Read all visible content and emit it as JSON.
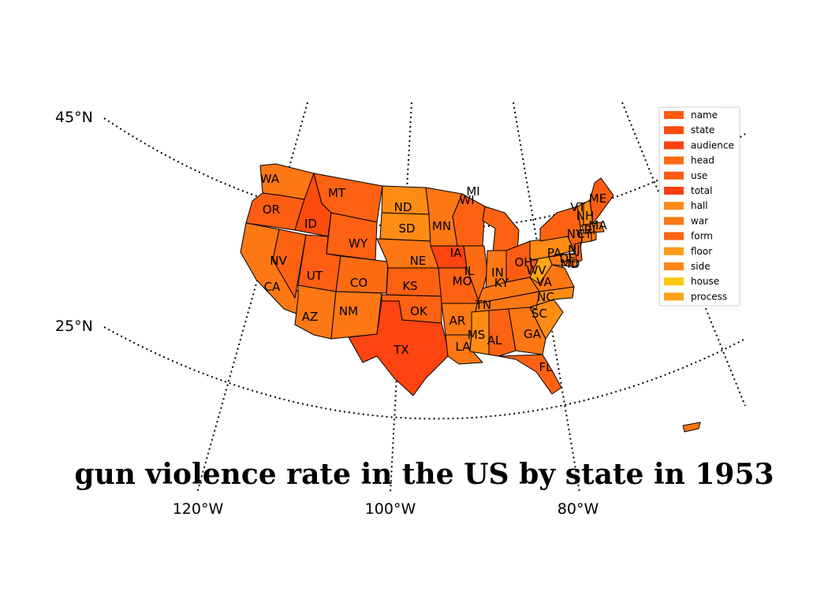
{
  "title": "gun violence rate in the US by state in 1953",
  "graticule_labels": {
    "lat": [
      "45°N",
      "25°N"
    ],
    "lon": [
      "120°W",
      "100°W",
      "80°W"
    ]
  },
  "legend": [
    {
      "label": "name",
      "color": "#fe5a10"
    },
    {
      "label": "state",
      "color": "#fd4b0e"
    },
    {
      "label": "audience",
      "color": "#fe4410"
    },
    {
      "label": "head",
      "color": "#fd6c12"
    },
    {
      "label": "use",
      "color": "#fd5d12"
    },
    {
      "label": "total",
      "color": "#fe3f10"
    },
    {
      "label": "hall",
      "color": "#fe8c14"
    },
    {
      "label": "war",
      "color": "#fd7714"
    },
    {
      "label": "form",
      "color": "#fd6212"
    },
    {
      "label": "floor",
      "color": "#fd9c16"
    },
    {
      "label": "side",
      "color": "#fe8716"
    },
    {
      "label": "house",
      "color": "#fdc80c"
    },
    {
      "label": "process",
      "color": "#fea418"
    }
  ],
  "states": [
    {
      "abbr": "WA",
      "color": "#fd7714"
    },
    {
      "abbr": "OR",
      "color": "#fd5d12"
    },
    {
      "abbr": "CA",
      "color": "#fd7714"
    },
    {
      "abbr": "ID",
      "color": "#fd4b0e"
    },
    {
      "abbr": "NV",
      "color": "#fd6212"
    },
    {
      "abbr": "MT",
      "color": "#fd6212"
    },
    {
      "abbr": "WY",
      "color": "#fd6212"
    },
    {
      "abbr": "UT",
      "color": "#fd5d12"
    },
    {
      "abbr": "AZ",
      "color": "#fd7714"
    },
    {
      "abbr": "CO",
      "color": "#fd6c12"
    },
    {
      "abbr": "NM",
      "color": "#fd7714"
    },
    {
      "abbr": "ND",
      "color": "#fe8c14"
    },
    {
      "abbr": "SD",
      "color": "#fe8c14"
    },
    {
      "abbr": "NE",
      "color": "#fd7714"
    },
    {
      "abbr": "KS",
      "color": "#fd6212"
    },
    {
      "abbr": "OK",
      "color": "#fd6212"
    },
    {
      "abbr": "TX",
      "color": "#fe4410"
    },
    {
      "abbr": "MN",
      "color": "#fd7714"
    },
    {
      "abbr": "IA",
      "color": "#fe4410"
    },
    {
      "abbr": "MO",
      "color": "#fd6212"
    },
    {
      "abbr": "AR",
      "color": "#fd7714"
    },
    {
      "abbr": "LA",
      "color": "#fd7714"
    },
    {
      "abbr": "WI",
      "color": "#fd6212"
    },
    {
      "abbr": "IL",
      "color": "#fd6c12"
    },
    {
      "abbr": "MI",
      "color": "#fd6212"
    },
    {
      "abbr": "IN",
      "color": "#fd7714"
    },
    {
      "abbr": "OH",
      "color": "#fd5d12"
    },
    {
      "abbr": "KY",
      "color": "#fd7714"
    },
    {
      "abbr": "TN",
      "color": "#fd7714"
    },
    {
      "abbr": "MS",
      "color": "#fe8c14"
    },
    {
      "abbr": "AL",
      "color": "#fd6212"
    },
    {
      "abbr": "GA",
      "color": "#fd7714"
    },
    {
      "abbr": "FL",
      "color": "#fd6212"
    },
    {
      "abbr": "SC",
      "color": "#fe8c14"
    },
    {
      "abbr": "NC",
      "color": "#fe8c14"
    },
    {
      "abbr": "VA",
      "color": "#fd7714"
    },
    {
      "abbr": "WV",
      "color": "#fea418"
    },
    {
      "abbr": "PA",
      "color": "#fe8c14"
    },
    {
      "abbr": "NY",
      "color": "#fd6212"
    },
    {
      "abbr": "VT",
      "color": "#fd7714"
    },
    {
      "abbr": "NH",
      "color": "#fe8c14"
    },
    {
      "abbr": "ME",
      "color": "#fd5d12"
    },
    {
      "abbr": "MA",
      "color": "#fd7714"
    },
    {
      "abbr": "CT",
      "color": "#fd7714"
    },
    {
      "abbr": "RI",
      "color": "#fd7714"
    },
    {
      "abbr": "NJ",
      "color": "#fd6212"
    },
    {
      "abbr": "DE",
      "color": "#fd7714"
    },
    {
      "abbr": "MD",
      "color": "#fd7714"
    }
  ]
}
